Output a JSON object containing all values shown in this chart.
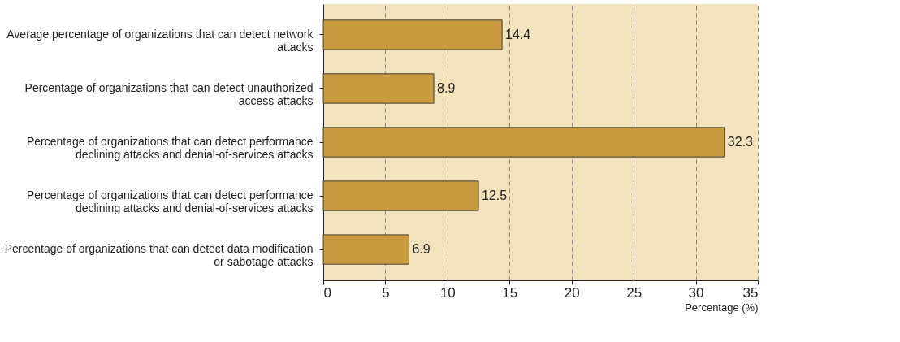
{
  "chart_data": {
    "type": "bar",
    "orientation": "horizontal",
    "xlabel": "Percentage (%)",
    "categories": [
      "Average percentage of organizations that can detect network attacks",
      "Percentage of organizations that can detect unauthorized access attacks",
      "Percentage of organizations that can detect performance declining attacks and denial-of-services attacks",
      "Percentage of organizations that can detect performance declining attacks and denial-of-services attacks",
      "Percentage of organizations that can detect data modification or sabotage attacks"
    ],
    "values": [
      14.4,
      8.9,
      32.3,
      12.5,
      6.9
    ],
    "color": "#c99b3f",
    "xlim": [
      0,
      35
    ],
    "xticks": [
      0,
      5,
      10,
      15,
      20,
      25,
      30,
      35
    ],
    "grid": "x",
    "line_style": "dashed",
    "data_labels": true
  }
}
